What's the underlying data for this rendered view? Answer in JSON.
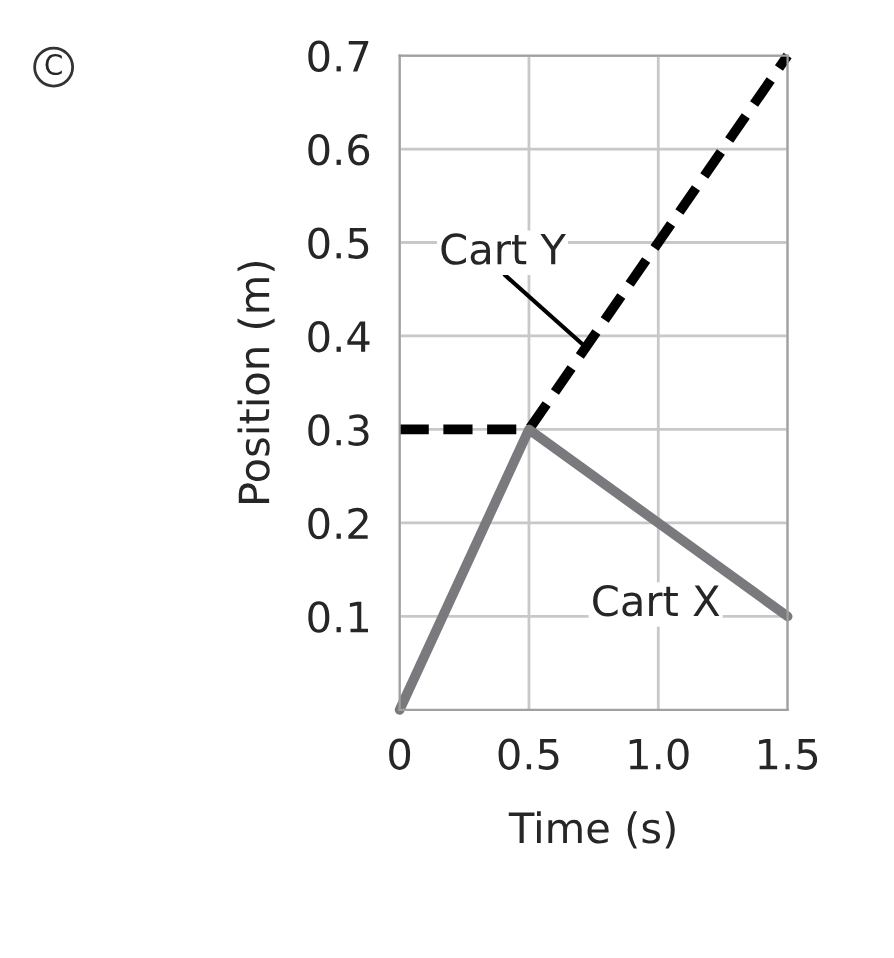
{
  "chart_data": {
    "type": "line",
    "xlabel": "Time (s)",
    "ylabel": "Position (m)",
    "xlim": [
      0,
      1.5
    ],
    "ylim": [
      0,
      0.7
    ],
    "xticks": [
      0,
      0.5,
      {
        "value": 1.0,
        "label": "1.0"
      },
      1.5
    ],
    "yticks": [
      0.1,
      0.2,
      0.3,
      0.4,
      0.5,
      0.6,
      0.7
    ],
    "grid": true,
    "legend": false,
    "series": [
      {
        "name": "Cart Y",
        "color": "#000000",
        "line_style": "dashed",
        "x": [
          0,
          0.5,
          1.5
        ],
        "values": [
          0.3,
          0.3,
          0.7
        ]
      },
      {
        "name": "Cart X",
        "color": "#7a7a7e",
        "line_style": "solid",
        "x": [
          0,
          0.5,
          1.0,
          1.5
        ],
        "values": [
          0,
          0.3,
          0.2,
          0.1
        ]
      }
    ],
    "annotations": [
      "C"
    ]
  }
}
